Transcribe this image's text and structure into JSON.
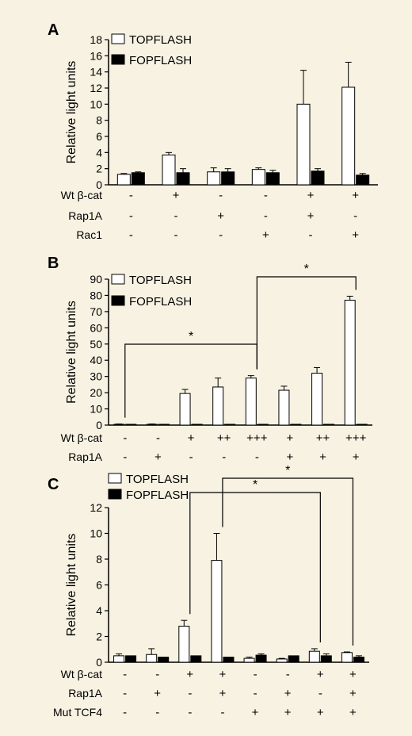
{
  "colors": {
    "background": "#f7f2e2",
    "topflash": "#ffffff",
    "fopflash": "#000000",
    "stroke": "#000000"
  },
  "chart_data": [
    {
      "panel": "A",
      "type": "bar",
      "ylabel": "Relative light units",
      "ylim": [
        0,
        18
      ],
      "yticks": [
        0,
        2,
        4,
        6,
        8,
        10,
        12,
        14,
        16,
        18
      ],
      "legend": [
        "TOPFLASH",
        "FOPFLASH"
      ],
      "legend_placement": "top-left",
      "series": [
        {
          "name": "TOPFLASH",
          "values": [
            1.3,
            3.7,
            1.6,
            1.9,
            10.0,
            12.1
          ],
          "errors": [
            0.1,
            0.3,
            0.5,
            0.2,
            4.2,
            3.1
          ]
        },
        {
          "name": "FOPFLASH",
          "values": [
            1.5,
            1.5,
            1.6,
            1.5,
            1.7,
            1.2
          ],
          "errors": [
            0.1,
            0.5,
            0.4,
            0.3,
            0.3,
            0.2
          ]
        }
      ],
      "conditions": [
        {
          "label": "Wt β-cat",
          "values": [
            "-",
            "+",
            "-",
            "-",
            "+",
            "+"
          ]
        },
        {
          "label": "Rap1A",
          "values": [
            "-",
            "-",
            "+",
            "-",
            "+",
            "-"
          ]
        },
        {
          "label": "Rac1",
          "values": [
            "-",
            "-",
            "-",
            "+",
            "-",
            "+"
          ]
        }
      ],
      "significance": []
    },
    {
      "panel": "B",
      "type": "bar",
      "ylabel": "Relative light units",
      "ylim": [
        0,
        90
      ],
      "yticks": [
        0,
        10,
        20,
        30,
        40,
        50,
        60,
        70,
        80,
        90
      ],
      "legend": [
        "TOPFLASH",
        "FOPFLASH"
      ],
      "legend_placement": "top-left",
      "series": [
        {
          "name": "TOPFLASH",
          "values": [
            0.5,
            0.5,
            19.5,
            23.5,
            29,
            21.5,
            32,
            77
          ],
          "errors": [
            0.2,
            0.2,
            2.5,
            5.5,
            1.5,
            2.5,
            3.5,
            2.5
          ]
        },
        {
          "name": "FOPFLASH",
          "values": [
            0.5,
            0.5,
            0.5,
            0.5,
            0.5,
            0.5,
            0.5,
            0.5
          ],
          "errors": [
            0,
            0,
            0,
            0,
            0,
            0,
            0,
            0
          ]
        }
      ],
      "conditions": [
        {
          "label": "Wt β-cat",
          "values": [
            "-",
            "-",
            "+",
            "++",
            "+++",
            "+",
            "++",
            "+++"
          ]
        },
        {
          "label": "Rap1A",
          "values": [
            "-",
            "+",
            "-",
            "-",
            "-",
            "+",
            "+",
            "+"
          ]
        }
      ],
      "significance": [
        {
          "from": 0,
          "to": 4,
          "label": "*"
        },
        {
          "from": 4,
          "to": 7,
          "label": "*"
        }
      ]
    },
    {
      "panel": "C",
      "type": "bar",
      "ylabel": "Relative light units",
      "ylim": [
        0,
        12
      ],
      "yticks": [
        0,
        2,
        4,
        6,
        8,
        10,
        12
      ],
      "legend": [
        "TOPFLASH",
        "FOPFLASH"
      ],
      "legend_placement": "top-left",
      "series": [
        {
          "name": "TOPFLASH",
          "values": [
            0.5,
            0.6,
            2.8,
            7.9,
            0.3,
            0.25,
            0.85,
            0.75
          ],
          "errors": [
            0.15,
            0.45,
            0.45,
            2.1,
            0.1,
            0.05,
            0.2,
            0.05
          ]
        },
        {
          "name": "FOPFLASH",
          "values": [
            0.5,
            0.4,
            0.5,
            0.4,
            0.55,
            0.5,
            0.5,
            0.4
          ],
          "errors": [
            0,
            0,
            0,
            0,
            0.1,
            0,
            0.15,
            0.1
          ]
        }
      ],
      "conditions": [
        {
          "label": "Wt β-cat",
          "values": [
            "-",
            "-",
            "+",
            "+",
            "-",
            "-",
            "+",
            "+"
          ]
        },
        {
          "label": "Rap1A",
          "values": [
            "-",
            "+",
            "-",
            "+",
            "-",
            "+",
            "-",
            "+"
          ]
        },
        {
          "label": "Mut TCF4",
          "values": [
            "-",
            "-",
            "-",
            "-",
            "+",
            "+",
            "+",
            "+"
          ]
        }
      ],
      "significance": [
        {
          "from": 2,
          "to": 6,
          "label": "*"
        },
        {
          "from": 3,
          "to": 7,
          "label": "*"
        }
      ]
    }
  ]
}
